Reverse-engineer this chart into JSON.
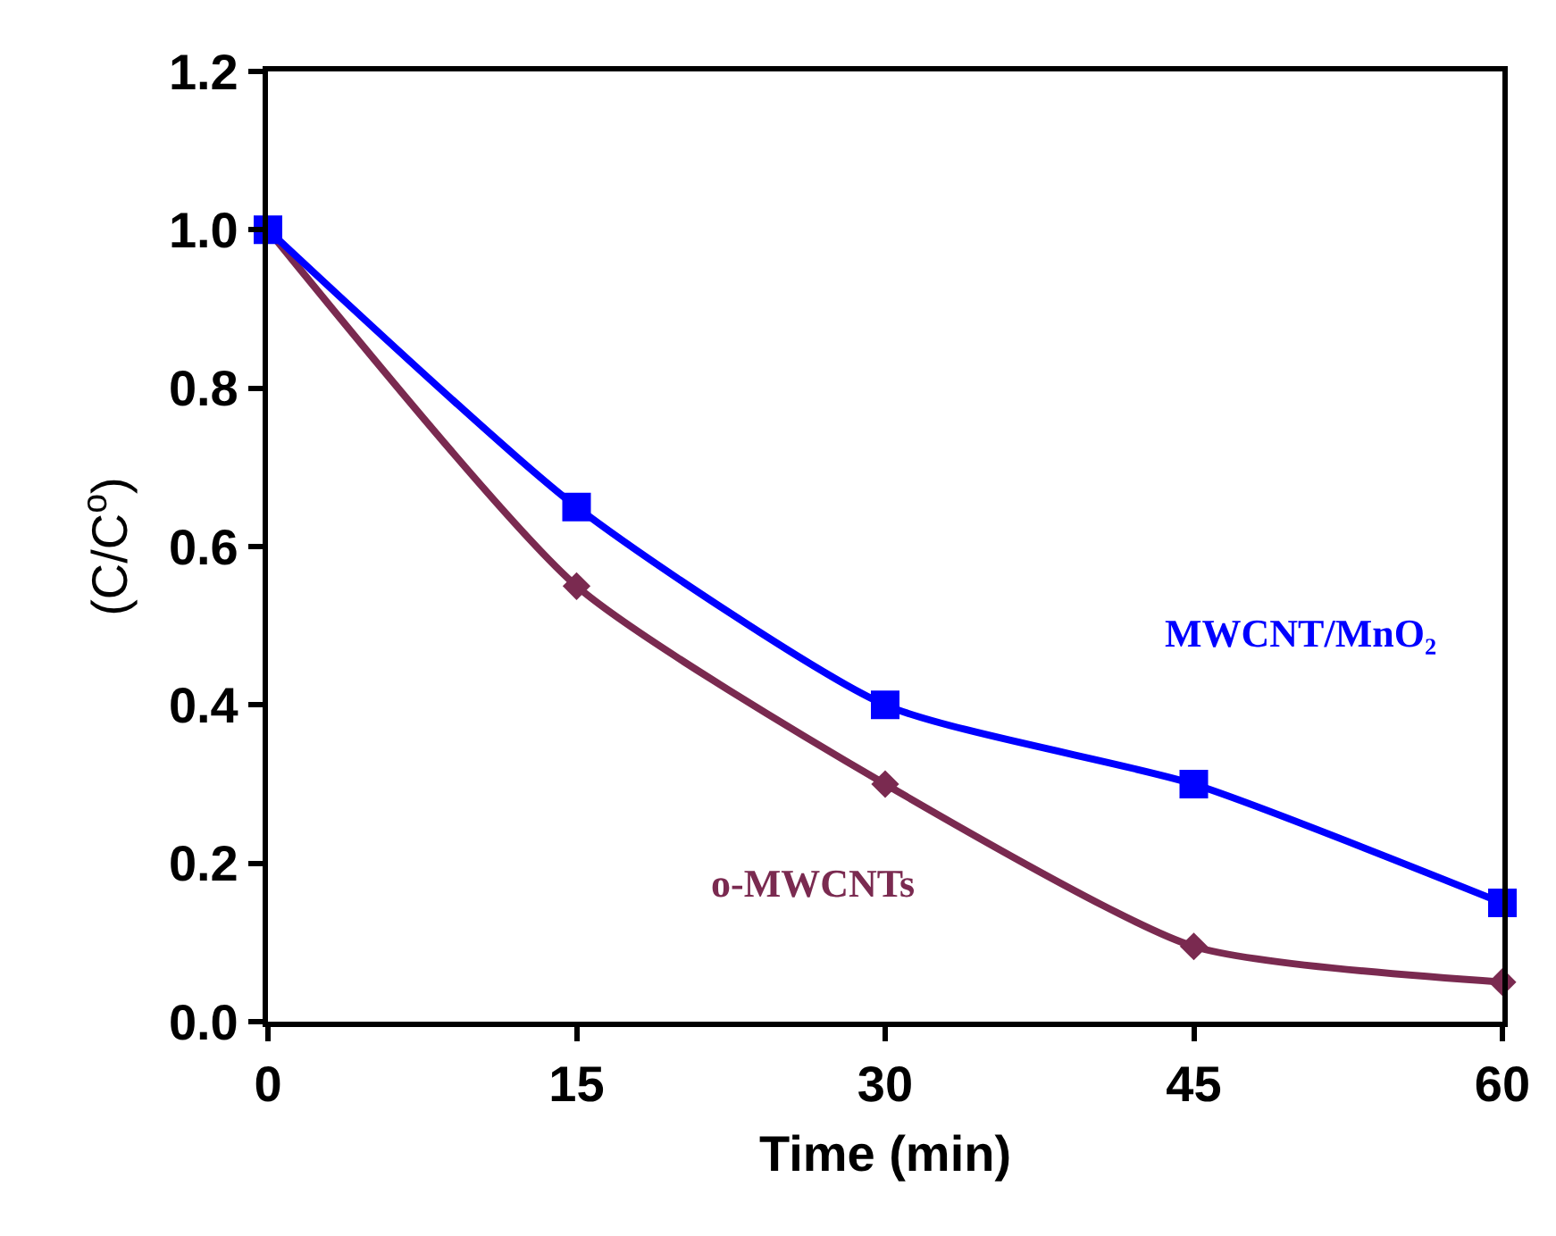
{
  "chart_data": {
    "type": "line",
    "xlabel": "Time (min)",
    "ylabel": "(C/C$^{o}$)",
    "x": [
      0,
      15,
      30,
      45,
      60
    ],
    "series": [
      {
        "name": "MWCNT/MnO₂",
        "color": "#0000ff",
        "marker": "square",
        "values": [
          1.0,
          0.65,
          0.4,
          0.3,
          0.15
        ]
      },
      {
        "name": "o-MWCNTs",
        "color": "#7a2a50",
        "marker": "diamond",
        "values": [
          1.0,
          0.55,
          0.3,
          0.095,
          0.05
        ]
      }
    ],
    "xlim": [
      0,
      60
    ],
    "xticks": [
      0,
      15,
      30,
      45,
      60
    ],
    "ylim": [
      0,
      1.2
    ],
    "yticks": [
      {
        "value": 0,
        "label": "0.0"
      },
      {
        "value": 0.2,
        "label": "0.2"
      },
      {
        "value": 0.4,
        "label": "0.4"
      },
      {
        "value": 0.6,
        "label": "0.6"
      },
      {
        "value": 0.8,
        "label": "0.8"
      },
      {
        "value": 1.0,
        "label": "1.0"
      },
      {
        "value": 1.2,
        "label": "1.2"
      }
    ],
    "legend": false
  }
}
